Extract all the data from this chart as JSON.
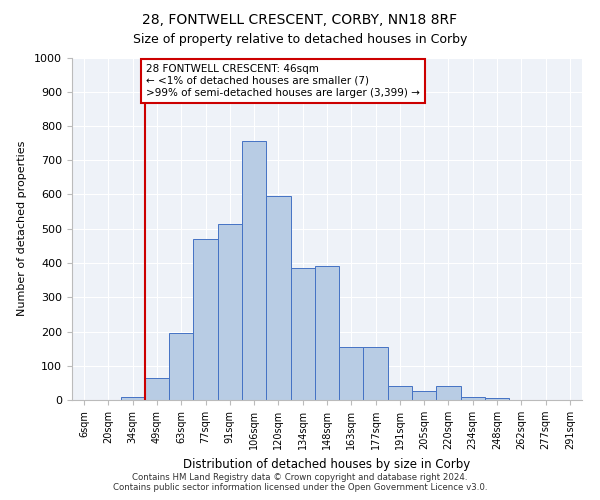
{
  "title1": "28, FONTWELL CRESCENT, CORBY, NN18 8RF",
  "title2": "Size of property relative to detached houses in Corby",
  "xlabel": "Distribution of detached houses by size in Corby",
  "ylabel": "Number of detached properties",
  "categories": [
    "6sqm",
    "20sqm",
    "34sqm",
    "49sqm",
    "63sqm",
    "77sqm",
    "91sqm",
    "106sqm",
    "120sqm",
    "134sqm",
    "148sqm",
    "163sqm",
    "177sqm",
    "191sqm",
    "205sqm",
    "220sqm",
    "234sqm",
    "248sqm",
    "262sqm",
    "277sqm",
    "291sqm"
  ],
  "values": [
    0,
    0,
    10,
    65,
    195,
    470,
    515,
    755,
    595,
    385,
    390,
    155,
    155,
    40,
    25,
    40,
    10,
    5,
    0,
    0,
    0
  ],
  "bar_color": "#b8cce4",
  "bar_edge_color": "#4472c4",
  "annotation_text": "28 FONTWELL CRESCENT: 46sqm\n← <1% of detached houses are smaller (7)\n>99% of semi-detached houses are larger (3,399) →",
  "annotation_box_color": "#ffffff",
  "annotation_box_edge": "#cc0000",
  "vline_color": "#cc0000",
  "vline_x_index": 3,
  "ylim": [
    0,
    1000
  ],
  "yticks": [
    0,
    100,
    200,
    300,
    400,
    500,
    600,
    700,
    800,
    900,
    1000
  ],
  "bg_color": "#eef2f8",
  "footer1": "Contains HM Land Registry data © Crown copyright and database right 2024.",
  "footer2": "Contains public sector information licensed under the Open Government Licence v3.0."
}
